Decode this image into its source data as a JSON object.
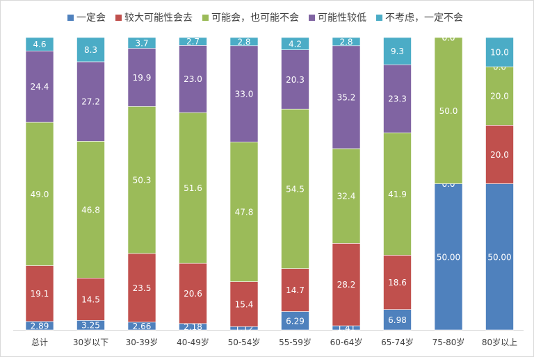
{
  "chart_data": {
    "type": "bar",
    "stacked": true,
    "percent_stacked": true,
    "legend_position": "top",
    "grid": false,
    "categories": [
      "总计",
      "30岁以下",
      "30-39岁",
      "40-49岁",
      "50-54岁",
      "55-59岁",
      "60-64岁",
      "65-74岁",
      "75-80岁",
      "80岁以上"
    ],
    "series": [
      {
        "name": "一定会",
        "color": "#4f81bd",
        "values": [
          2.89,
          3.25,
          2.66,
          2.18,
          1.12,
          6.29,
          1.41,
          6.98,
          50.0,
          50.0
        ],
        "labels": [
          "2.89",
          "3.25",
          "2.66",
          "2.18",
          "1.12",
          "6.29",
          "1.41",
          "6.98",
          "50.00",
          "50.00"
        ]
      },
      {
        "name": "较大可能性会去",
        "color": "#c0504d",
        "values": [
          19.1,
          14.5,
          23.5,
          20.6,
          15.4,
          14.7,
          28.2,
          18.6,
          0.0,
          20.0
        ],
        "labels": [
          "19.1",
          "14.5",
          "23.5",
          "20.6",
          "15.4",
          "14.7",
          "28.2",
          "18.6",
          "0.0",
          "20.0"
        ]
      },
      {
        "name": "可能会，也可能不会",
        "color": "#9bbb59",
        "values": [
          49.0,
          46.8,
          50.3,
          51.6,
          47.8,
          54.5,
          32.4,
          41.9,
          50.0,
          20.0
        ],
        "labels": [
          "49.0",
          "46.8",
          "50.3",
          "51.6",
          "47.8",
          "54.5",
          "32.4",
          "41.9",
          "50.0",
          "20.0"
        ]
      },
      {
        "name": "可能性较低",
        "color": "#8064a2",
        "values": [
          24.4,
          27.2,
          19.9,
          23.0,
          33.0,
          20.3,
          35.2,
          23.3,
          0.0,
          0.0
        ],
        "labels": [
          "24.4",
          "27.2",
          "19.9",
          "23.0",
          "33.0",
          "20.3",
          "35.2",
          "23.3",
          "0.0",
          "0.0"
        ]
      },
      {
        "name": "不考虑，一定不会",
        "color": "#4bacc6",
        "values": [
          4.6,
          8.3,
          3.7,
          2.7,
          2.8,
          4.2,
          2.8,
          9.3,
          0.0,
          10.0
        ],
        "labels": [
          "4.6",
          "8.3",
          "3.7",
          "2.7",
          "2.8",
          "4.2",
          "2.8",
          "9.3",
          "0.0",
          "10.0"
        ]
      }
    ]
  }
}
